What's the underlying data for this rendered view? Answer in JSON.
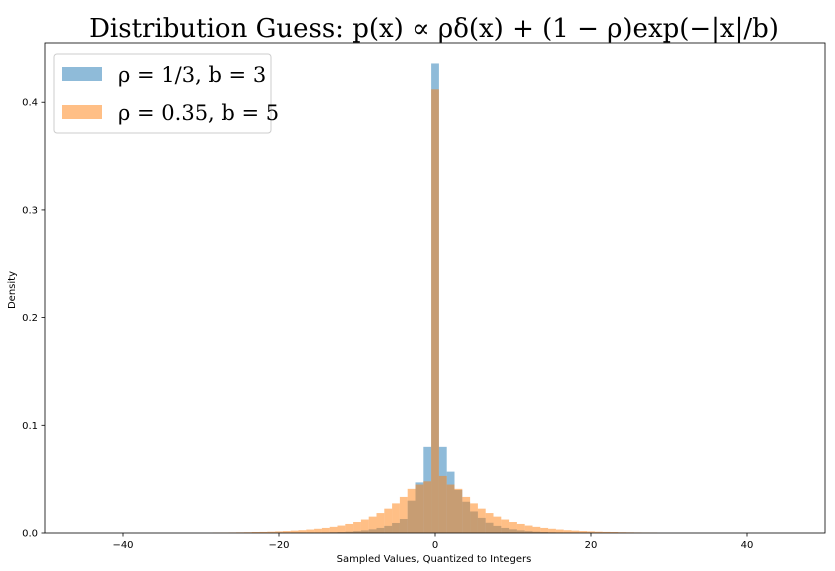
{
  "chart_data": {
    "type": "bar",
    "title": "Distribution Guess: p(x) ∝ ρδ(x) + (1 − ρ)exp(−|x|/b)",
    "xlabel": "Sampled Values, Quantized to Integers",
    "ylabel": "Density",
    "xlim": [
      -50,
      50
    ],
    "ylim": [
      0,
      0.455
    ],
    "xticks": [
      -40,
      -20,
      0,
      20,
      40
    ],
    "yticks": [
      0.0,
      0.1,
      0.2,
      0.3,
      0.4
    ],
    "ytick_labels": [
      "0.0",
      "0.1",
      "0.2",
      "0.3",
      "0.4"
    ],
    "legend_position": "upper-left",
    "bin_width": 1,
    "series": [
      {
        "name": "ρ = 1/3, b = 3",
        "color": "#1f77b4",
        "alpha": 0.5,
        "x": [
          -19,
          -18,
          -17,
          -16,
          -15,
          -14,
          -13,
          -12,
          -11,
          -10,
          -9,
          -8,
          -7,
          -6,
          -5,
          -4,
          -3,
          -2,
          -1,
          0,
          1,
          2,
          3,
          4,
          5,
          6,
          7,
          8,
          9,
          10,
          11,
          12,
          13,
          14,
          15,
          16,
          17,
          18,
          19
        ],
        "values": [
          0.0001,
          0.0001,
          0.0002,
          0.0002,
          0.0003,
          0.0005,
          0.0007,
          0.0009,
          0.0012,
          0.0017,
          0.0024,
          0.0034,
          0.0047,
          0.0066,
          0.0093,
          0.013,
          0.03,
          0.047,
          0.08,
          0.436,
          0.08,
          0.057,
          0.04,
          0.029,
          0.02,
          0.014,
          0.0095,
          0.0066,
          0.0047,
          0.0034,
          0.0024,
          0.0017,
          0.0012,
          0.0009,
          0.0006,
          0.0004,
          0.0003,
          0.0002,
          0.0001
        ]
      },
      {
        "name": "ρ = 0.35, b = 5",
        "color": "#ff7f0e",
        "alpha": 0.5,
        "x": [
          -28,
          -27,
          -26,
          -25,
          -24,
          -23,
          -22,
          -21,
          -20,
          -19,
          -18,
          -17,
          -16,
          -15,
          -14,
          -13,
          -12,
          -11,
          -10,
          -9,
          -8,
          -7,
          -6,
          -5,
          -4,
          -3,
          -2,
          -1,
          0,
          1,
          2,
          3,
          4,
          5,
          6,
          7,
          8,
          9,
          10,
          11,
          12,
          13,
          14,
          15,
          16,
          17,
          18,
          19,
          20,
          21,
          22,
          23,
          24,
          25,
          26,
          27,
          28
        ],
        "values": [
          0.0003,
          0.0004,
          0.0005,
          0.0006,
          0.0007,
          0.0009,
          0.001,
          0.0012,
          0.0015,
          0.0018,
          0.0022,
          0.0026,
          0.0032,
          0.0039,
          0.0047,
          0.0057,
          0.0069,
          0.0084,
          0.0102,
          0.0125,
          0.0152,
          0.0185,
          0.0226,
          0.0275,
          0.0335,
          0.041,
          0.045,
          0.048,
          0.412,
          0.053,
          0.045,
          0.041,
          0.0335,
          0.0275,
          0.0226,
          0.0185,
          0.0152,
          0.0125,
          0.0102,
          0.0084,
          0.0069,
          0.0057,
          0.0047,
          0.0039,
          0.0032,
          0.0026,
          0.0022,
          0.0018,
          0.0015,
          0.0012,
          0.001,
          0.0009,
          0.0007,
          0.0006,
          0.0005,
          0.0004,
          0.0003
        ]
      }
    ]
  }
}
